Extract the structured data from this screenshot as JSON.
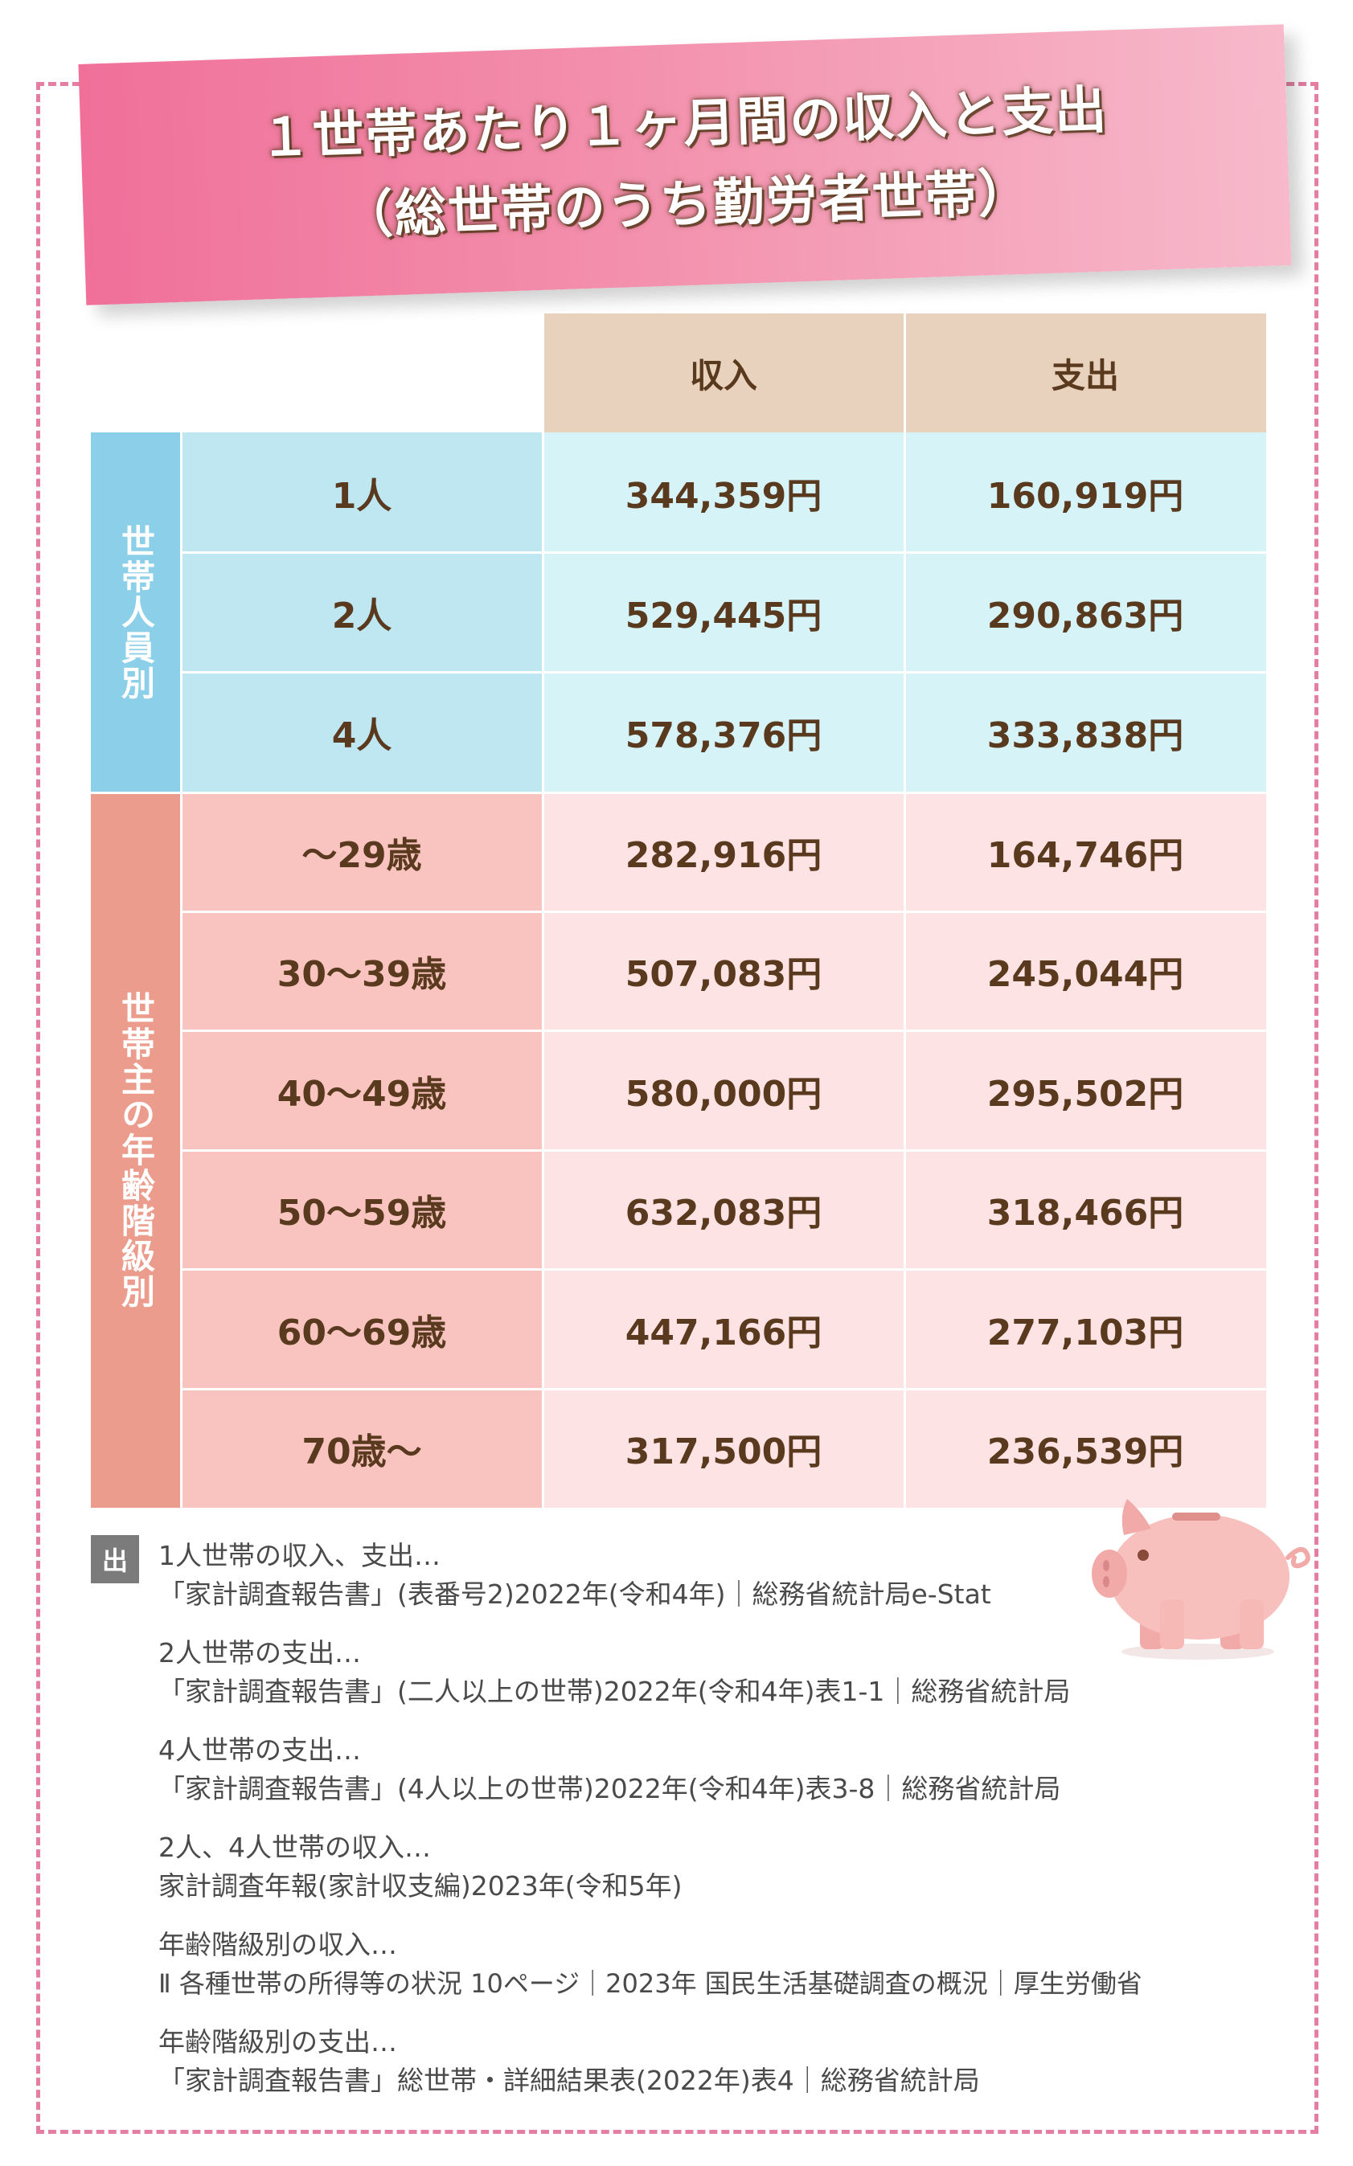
{
  "title": {
    "line1": "１世帯あたり１ヶ月間の収入と支出",
    "line2": "（総世帯のうち勤労者世帯）"
  },
  "table": {
    "columns": [
      "収入",
      "支出"
    ],
    "groups": [
      {
        "label": "世帯人員別",
        "rows": [
          {
            "label": "1人",
            "income": "344,359円",
            "expense": "160,919円"
          },
          {
            "label": "2人",
            "income": "529,445円",
            "expense": "290,863円"
          },
          {
            "label": "4人",
            "income": "578,376円",
            "expense": "333,838円"
          }
        ]
      },
      {
        "label": "世帯主の年齢階級別",
        "rows": [
          {
            "label": "～29歳",
            "income": "282,916円",
            "expense": "164,746円"
          },
          {
            "label": "30～39歳",
            "income": "507,083円",
            "expense": "245,044円"
          },
          {
            "label": "40～49歳",
            "income": "580,000円",
            "expense": "295,502円"
          },
          {
            "label": "50～59歳",
            "income": "632,083円",
            "expense": "318,466円"
          },
          {
            "label": "60～69歳",
            "income": "447,166円",
            "expense": "277,103円"
          },
          {
            "label": "70歳～",
            "income": "317,500円",
            "expense": "236,539円"
          }
        ]
      }
    ]
  },
  "source": {
    "badge": "出",
    "entries": [
      {
        "heading": "1人世帯の収入、支出…",
        "detail": "「家計調査報告書」(表番号2)2022年(令和4年)｜総務省統計局e-Stat"
      },
      {
        "heading": "2人世帯の支出…",
        "detail": "「家計調査報告書」(二人以上の世帯)2022年(令和4年)表1-1｜総務省統計局"
      },
      {
        "heading": "4人世帯の支出…",
        "detail": "「家計調査報告書」(4人以上の世帯)2022年(令和4年)表3-8｜総務省統計局"
      },
      {
        "heading": "2人、4人世帯の収入…",
        "detail": "家計調査年報(家計収支編)2023年(令和5年)"
      },
      {
        "heading": "年齢階級別の収入…",
        "detail": "Ⅱ 各種世帯の所得等の状況 10ページ｜2023年 国民生活基礎調査の概況｜厚生労働省"
      },
      {
        "heading": "年齢階級別の支出…",
        "detail": "「家計調査報告書」総世帯・詳細結果表(2022年)表4｜総務省統計局"
      }
    ]
  },
  "colors": {
    "frame": "#e47ea3",
    "header": "#e8d2bd",
    "blue_side": "#8ccfe8",
    "pink_side": "#ec9c8c",
    "text": "#5a3a1e"
  },
  "icons": [
    "piggy-bank-icon"
  ]
}
